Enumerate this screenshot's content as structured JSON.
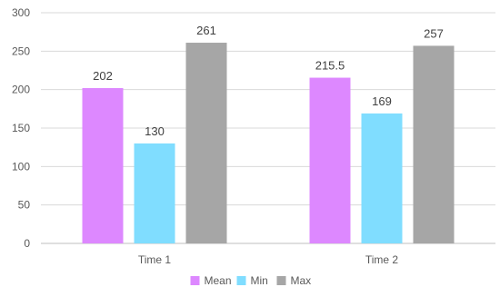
{
  "chart_data": {
    "type": "bar",
    "categories": [
      "Time 1",
      "Time 2"
    ],
    "series": [
      {
        "name": "Mean",
        "values": [
          202,
          215.5
        ],
        "color": "#DD88FF"
      },
      {
        "name": "Min",
        "values": [
          130,
          169
        ],
        "color": "#80DDFF"
      },
      {
        "name": "Max",
        "values": [
          261,
          257
        ],
        "color": "#A6A6A6"
      }
    ],
    "data_labels": [
      [
        "202",
        "215.5"
      ],
      [
        "130",
        "169"
      ],
      [
        "261",
        "257"
      ]
    ],
    "ylim": [
      0,
      300
    ],
    "yticks": [
      0,
      50,
      100,
      150,
      200,
      250,
      300
    ],
    "grid": true,
    "legend": "bottom",
    "title": "",
    "xlabel": "",
    "ylabel": ""
  }
}
